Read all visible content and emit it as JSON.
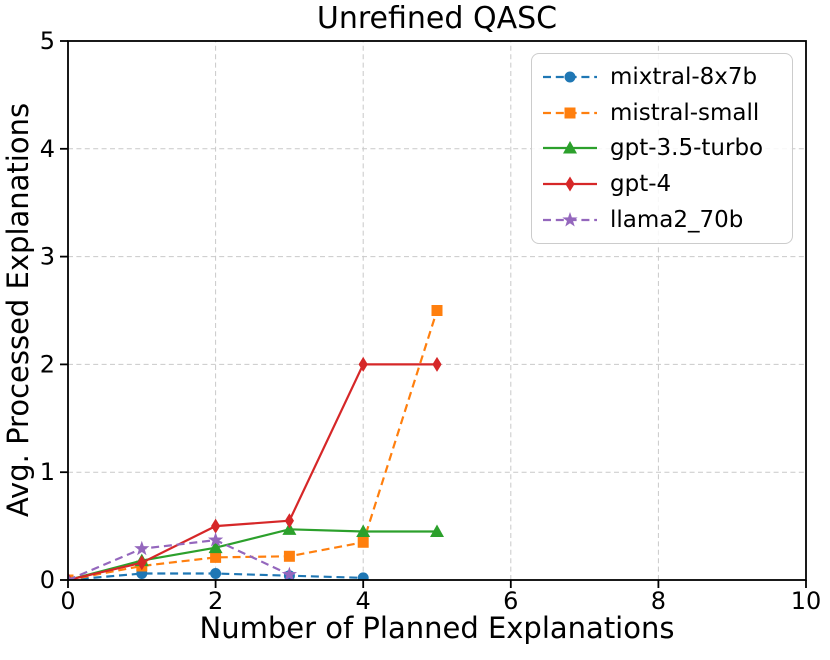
{
  "title": "Unrefined QASC",
  "chart_data": {
    "type": "line",
    "title": "Unrefined QASC",
    "xlabel": "Number of Planned Explanations",
    "ylabel": "Avg. Processed Explanations",
    "xlim": [
      0,
      10
    ],
    "ylim": [
      0,
      5
    ],
    "xticks": [
      0,
      2,
      4,
      6,
      8,
      10
    ],
    "yticks": [
      0,
      1,
      2,
      3,
      4,
      5
    ],
    "grid": true,
    "legend_position": "upper right",
    "series": [
      {
        "name": "mixtral-8x7b",
        "color": "#1f77b4",
        "linestyle": "dashed",
        "marker": "circle",
        "x": [
          0,
          1,
          2,
          3,
          4
        ],
        "y": [
          0,
          0.06,
          0.06,
          0.04,
          0.02
        ]
      },
      {
        "name": "mistral-small",
        "color": "#ff7f0e",
        "linestyle": "dashed",
        "marker": "square",
        "x": [
          0,
          1,
          2,
          3,
          4,
          5
        ],
        "y": [
          0,
          0.13,
          0.21,
          0.22,
          0.35,
          2.5
        ]
      },
      {
        "name": "gpt-3.5-turbo",
        "color": "#2ca02c",
        "linestyle": "solid",
        "marker": "triangle",
        "x": [
          0,
          1,
          2,
          3,
          4,
          5
        ],
        "y": [
          0,
          0.18,
          0.3,
          0.47,
          0.45,
          0.45
        ]
      },
      {
        "name": "gpt-4",
        "color": "#d62728",
        "linestyle": "solid",
        "marker": "diamond",
        "x": [
          0,
          1,
          2,
          3,
          4,
          5
        ],
        "y": [
          0,
          0.16,
          0.5,
          0.55,
          2.0,
          2.0
        ]
      },
      {
        "name": "llama2_70b",
        "color": "#9467bd",
        "linestyle": "dashed",
        "marker": "star",
        "x": [
          0,
          1,
          2,
          3
        ],
        "y": [
          0,
          0.29,
          0.37,
          0.05
        ]
      }
    ],
    "styles": {
      "spine_color": "#000000",
      "grid_color": "#c9c9c9",
      "tick_color": "#000000",
      "text_color": "#000000",
      "background": "#ffffff"
    }
  }
}
